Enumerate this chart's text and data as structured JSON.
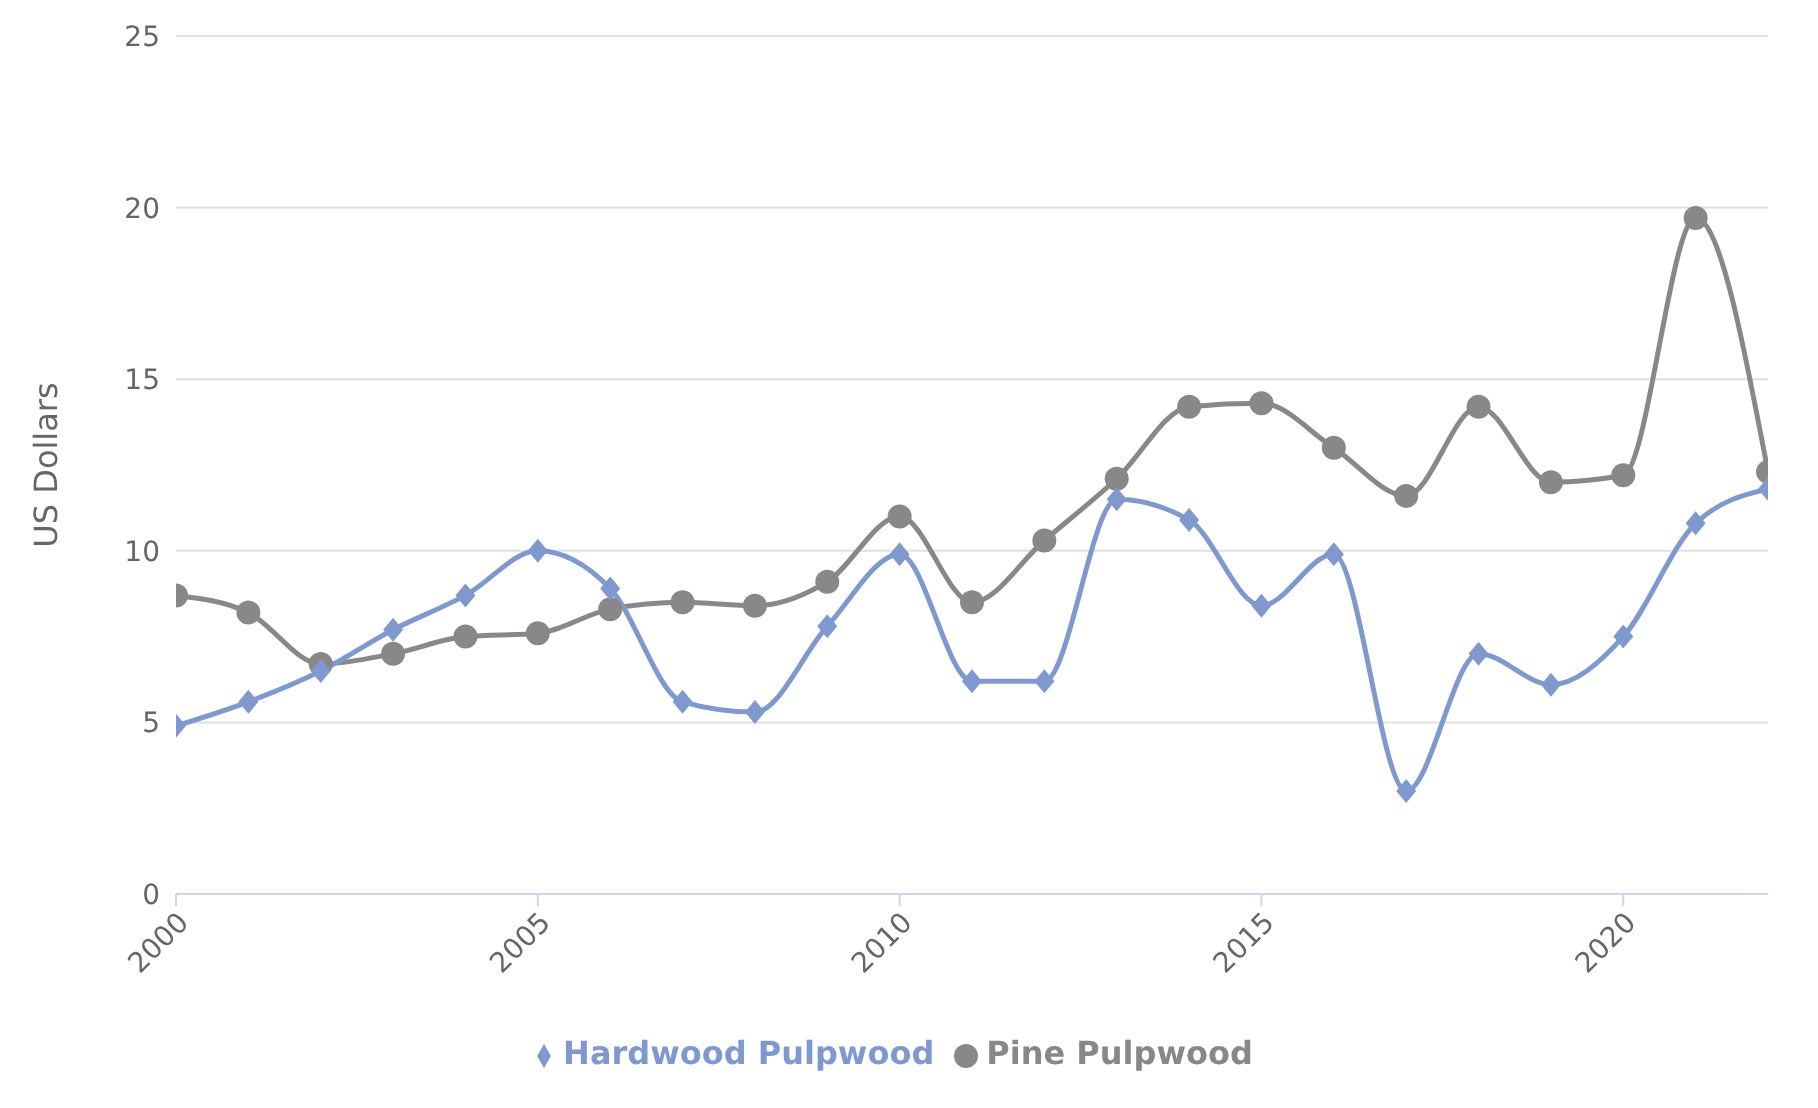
{
  "chart_data": {
    "type": "line",
    "ylabel": "US Dollars",
    "x": [
      2000,
      2001,
      2002,
      2003,
      2004,
      2005,
      2006,
      2007,
      2008,
      2009,
      2010,
      2011,
      2012,
      2013,
      2014,
      2015,
      2016,
      2017,
      2018,
      2019,
      2020,
      2021,
      2022
    ],
    "series": [
      {
        "name": "Pine Pulpwood",
        "color": "#888888",
        "marker": "circle",
        "values": [
          8.7,
          8.2,
          6.7,
          7.0,
          7.5,
          7.6,
          8.3,
          8.5,
          8.4,
          9.1,
          11.0,
          8.5,
          10.3,
          12.1,
          14.2,
          14.3,
          13.0,
          11.6,
          14.2,
          12.0,
          12.2,
          19.7,
          12.3
        ]
      },
      {
        "name": "Hardwood Pulpwood",
        "color": "#7f99cf",
        "marker": "diamond",
        "values": [
          4.9,
          5.6,
          6.5,
          7.7,
          8.7,
          10.0,
          8.9,
          5.6,
          5.3,
          7.8,
          9.9,
          6.2,
          6.2,
          11.5,
          10.9,
          8.4,
          9.9,
          3.0,
          7.0,
          6.1,
          7.5,
          10.8,
          11.8
        ]
      }
    ],
    "xlim": [
      2000,
      2022
    ],
    "xticks": [
      2000,
      2005,
      2010,
      2015,
      2020
    ],
    "ylim": [
      0,
      25
    ],
    "yticks": [
      0,
      5,
      10,
      15,
      20,
      25
    ],
    "grid": "y",
    "legend": "bottom",
    "line_style": "solid"
  }
}
